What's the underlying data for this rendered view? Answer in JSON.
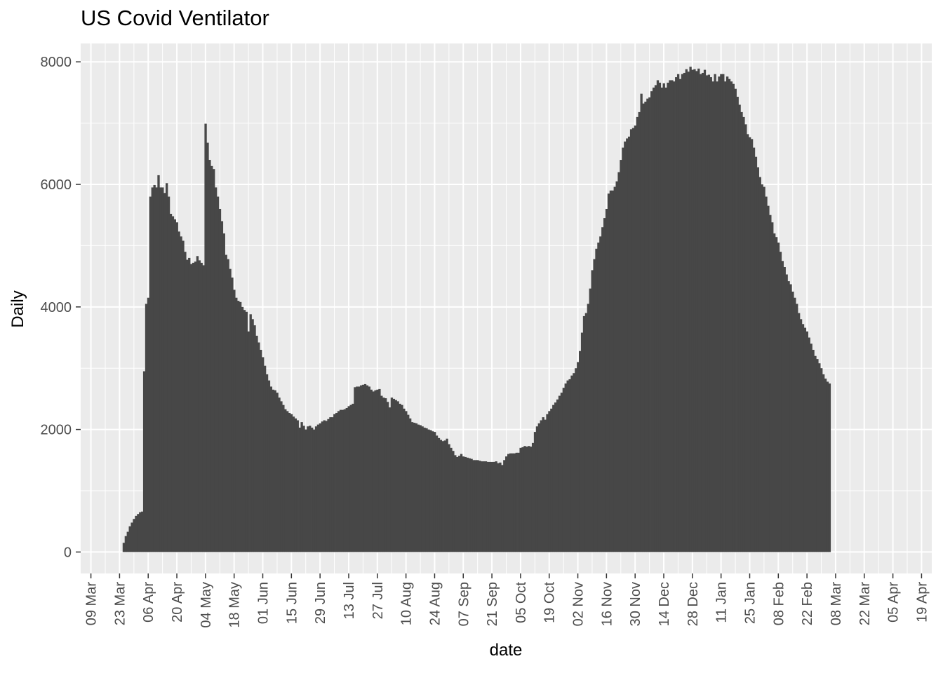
{
  "chart_data": {
    "type": "bar",
    "title": "US Covid Ventilator",
    "xlabel": "date",
    "ylabel": "Daily",
    "colors": {
      "bar": "#474747",
      "panel": "#ebebeb",
      "grid": "#ffffff",
      "text": "#4d4d4d"
    },
    "xlim": [
      "2020-03-04",
      "2021-04-24"
    ],
    "ylim": [
      -350,
      8300
    ],
    "x_ticks": [
      "09 Mar",
      "23 Mar",
      "06 Apr",
      "20 Apr",
      "04 May",
      "18 May",
      "01 Jun",
      "15 Jun",
      "29 Jun",
      "13 Jul",
      "27 Jul",
      "10 Aug",
      "24 Aug",
      "07 Sep",
      "21 Sep",
      "05 Oct",
      "19 Oct",
      "02 Nov",
      "16 Nov",
      "30 Nov",
      "14 Dec",
      "28 Dec",
      "11 Jan",
      "25 Jan",
      "08 Feb",
      "22 Feb",
      "08 Mar",
      "22 Mar",
      "05 Apr",
      "19 Apr"
    ],
    "y_ticks": [
      "0",
      "2000",
      "4000",
      "6000",
      "8000"
    ],
    "y_tick_values": [
      0,
      2000,
      4000,
      6000,
      8000
    ],
    "series": [
      {
        "start": "2020-03-25",
        "values": [
          150,
          260,
          330,
          420,
          480,
          540,
          590,
          620,
          650,
          660,
          2950,
          4050,
          4150,
          5800,
          5950,
          5990,
          5950,
          6150,
          5950,
          5950,
          5860,
          6020,
          5800,
          5520,
          5480,
          5430,
          5380,
          5230,
          5150,
          5080,
          4900,
          4770,
          4800,
          4700,
          4720,
          4740,
          4830,
          4760,
          4720,
          4680,
          6990,
          6680,
          6400,
          6300,
          6250,
          5950,
          5800,
          5600,
          5400,
          5200,
          4850,
          4780,
          4620,
          4480,
          4280,
          4150,
          4100,
          4080,
          4000,
          3950,
          3920,
          3600,
          3880,
          3800,
          3700,
          3530,
          3420,
          3300,
          3180,
          3040,
          2900,
          2800,
          2700,
          2650,
          2640,
          2600,
          2520,
          2460,
          2400,
          2330,
          2300,
          2270,
          2250,
          2210,
          2180,
          2150,
          2030,
          2120,
          2060,
          2000,
          2050,
          2060,
          2030,
          2000,
          2050,
          2080,
          2100,
          2130,
          2150,
          2140,
          2170,
          2200,
          2200,
          2250,
          2270,
          2300,
          2320,
          2320,
          2330,
          2350,
          2380,
          2400,
          2420,
          2690,
          2700,
          2700,
          2720,
          2730,
          2740,
          2720,
          2700,
          2650,
          2620,
          2640,
          2650,
          2660,
          2550,
          2520,
          2510,
          2450,
          2360,
          2520,
          2500,
          2480,
          2460,
          2420,
          2400,
          2340,
          2300,
          2240,
          2180,
          2120,
          2110,
          2100,
          2080,
          2070,
          2050,
          2030,
          2020,
          2000,
          1990,
          1970,
          1960,
          1900,
          1860,
          1830,
          1810,
          1820,
          1850,
          1760,
          1700,
          1650,
          1580,
          1550,
          1570,
          1600,
          1560,
          1550,
          1540,
          1530,
          1520,
          1500,
          1500,
          1500,
          1490,
          1480,
          1480,
          1480,
          1470,
          1470,
          1470,
          1470,
          1480,
          1450,
          1460,
          1420,
          1500,
          1560,
          1600,
          1610,
          1610,
          1610,
          1620,
          1620,
          1700,
          1710,
          1730,
          1720,
          1730,
          1720,
          1780,
          1960,
          2050,
          2100,
          2150,
          2200,
          2160,
          2250,
          2300,
          2340,
          2400,
          2440,
          2490,
          2550,
          2600,
          2680,
          2750,
          2800,
          2820,
          2880,
          2920,
          3000,
          3100,
          3280,
          3580,
          3850,
          3900,
          4050,
          4300,
          4600,
          4780,
          4950,
          5050,
          5150,
          5300,
          5450,
          5600,
          5850,
          5900,
          5900,
          5960,
          6050,
          6200,
          6400,
          6600,
          6700,
          6750,
          6780,
          6900,
          6920,
          6960,
          7100,
          7180,
          7480,
          7320,
          7350,
          7400,
          7420,
          7520,
          7580,
          7620,
          7700,
          7660,
          7580,
          7650,
          7580,
          7660,
          7700,
          7700,
          7680,
          7750,
          7800,
          7720,
          7800,
          7820,
          7880,
          7840,
          7920,
          7870,
          7880,
          7850,
          7890,
          7800,
          7820,
          7870,
          7780,
          7790,
          7750,
          7680,
          7800,
          7680,
          7760,
          7800,
          7800,
          7680,
          7760,
          7720,
          7680,
          7640,
          7560,
          7430,
          7300,
          7180,
          7100,
          6980,
          6820,
          6770,
          6740,
          6600,
          6450,
          6280,
          6120,
          6000,
          5960,
          5800,
          5650,
          5500,
          5380,
          5200,
          5140,
          5050,
          4900,
          4750,
          4650,
          4530,
          4420,
          4370,
          4250,
          4150,
          4050,
          3900,
          3800,
          3720,
          3660,
          3600,
          3500,
          3400,
          3300,
          3200,
          3150,
          3080,
          3000,
          2900,
          2830,
          2780,
          2750
        ]
      }
    ]
  }
}
